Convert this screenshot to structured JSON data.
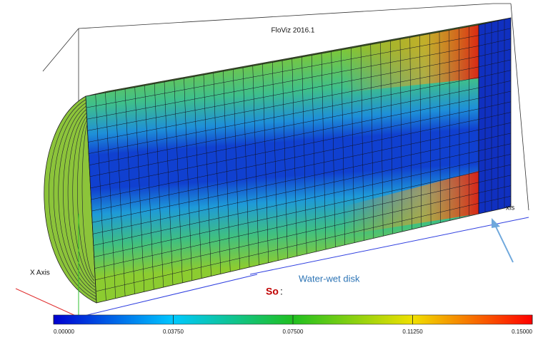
{
  "viewer": {
    "title": "FloViz 2016.1",
    "x_axis_label": "X Axis",
    "z_axis_label": "xis"
  },
  "annotation": {
    "text": "Water-wet disk"
  },
  "variable": {
    "name": "So",
    "separator": ":"
  },
  "colorbar": {
    "ticks": [
      {
        "value": 0,
        "label": "0.00000"
      },
      {
        "value": 0.0375,
        "label": "0.03750"
      },
      {
        "value": 0.075,
        "label": "0.07500"
      },
      {
        "value": 0.1125,
        "label": "0.11250"
      },
      {
        "value": 0.15,
        "label": "0.15000"
      }
    ]
  }
}
